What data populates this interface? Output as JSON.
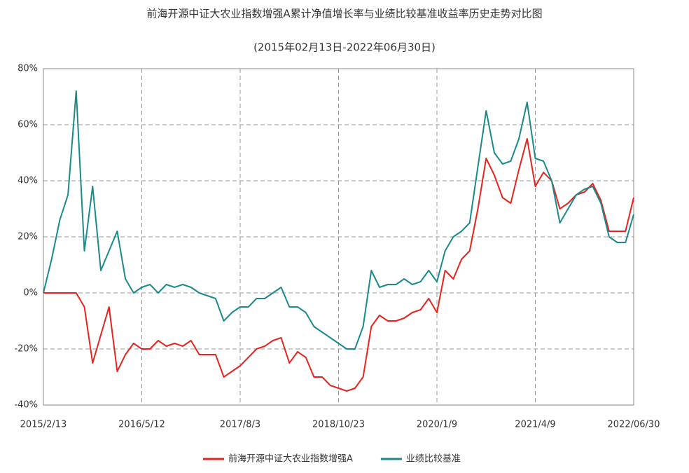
{
  "chart_data": {
    "type": "line",
    "title": "前海开源中证大农业指数增强A累计净值增长率与业绩比较基准收益率历史走势对比图",
    "subtitle": "(2015年02月13日-2022年06月30日)",
    "categories": [
      "2015/2/13",
      null,
      null,
      null,
      null,
      null,
      null,
      null,
      null,
      null,
      null,
      null,
      "2016/5/12",
      null,
      null,
      null,
      null,
      null,
      null,
      null,
      null,
      null,
      null,
      null,
      "2017/8/3",
      null,
      null,
      null,
      null,
      null,
      null,
      null,
      null,
      null,
      null,
      null,
      "2018/10/23",
      null,
      null,
      null,
      null,
      null,
      null,
      null,
      null,
      null,
      null,
      null,
      "2020/1/9",
      null,
      null,
      null,
      null,
      null,
      null,
      null,
      null,
      null,
      null,
      null,
      "2021/4/9",
      null,
      null,
      null,
      null,
      null,
      null,
      null,
      null,
      null,
      null,
      null,
      "2022/06/30"
    ],
    "series": [
      {
        "name": "前海开源中证大农业指数增强A",
        "color": "#e8231e",
        "values": [
          0,
          0,
          0,
          0,
          0,
          -5,
          -25,
          -15,
          -5,
          -28,
          -22,
          -18,
          -20,
          -20,
          -17,
          -19,
          -18,
          -19,
          -17,
          -22,
          -22,
          -22,
          -30,
          -28,
          -26,
          -23,
          -20,
          -19,
          -17,
          -16,
          -25,
          -21,
          -23,
          -30,
          -30,
          -33,
          -34,
          -35,
          -34,
          -30,
          -12,
          -8,
          -10,
          -10,
          -9,
          -7,
          -6,
          -2,
          -7,
          8,
          5,
          12,
          15,
          30,
          48,
          42,
          34,
          32,
          44,
          55,
          38,
          43,
          40,
          30,
          32,
          35,
          36,
          39,
          33,
          22,
          22,
          22,
          34
        ]
      },
      {
        "name": "业绩比较基准",
        "color": "#1b8a8a",
        "values": [
          0,
          12,
          26,
          35,
          72,
          15,
          38,
          8,
          15,
          22,
          5,
          0,
          2,
          3,
          0,
          3,
          2,
          3,
          2,
          0,
          -1,
          -2,
          -10,
          -7,
          -5,
          -5,
          -2,
          -2,
          0,
          2,
          -5,
          -5,
          -7,
          -12,
          -14,
          -16,
          -18,
          -20,
          -20,
          -12,
          8,
          2,
          3,
          3,
          5,
          3,
          4,
          8,
          4,
          15,
          20,
          22,
          25,
          45,
          65,
          50,
          46,
          47,
          55,
          68,
          48,
          47,
          40,
          25,
          30,
          35,
          37,
          38,
          32,
          20,
          18,
          18,
          28
        ]
      }
    ],
    "ylim": [
      -40,
      80
    ],
    "yticks": [
      {
        "value": -40,
        "label": "-40%"
      },
      {
        "value": -20,
        "label": "-20%"
      },
      {
        "value": 0,
        "label": "0%"
      },
      {
        "value": 20,
        "label": "20%"
      },
      {
        "value": 40,
        "label": "40%"
      },
      {
        "value": 60,
        "label": "60%"
      },
      {
        "value": 80,
        "label": "80%"
      }
    ],
    "grid": true
  }
}
